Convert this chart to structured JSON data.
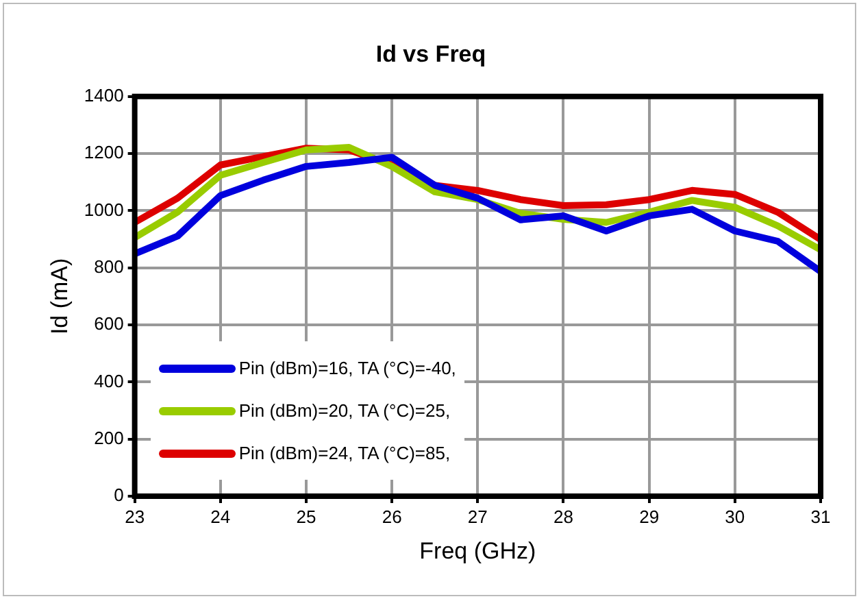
{
  "chart_data": {
    "type": "line",
    "title": "Id vs Freq",
    "xlabel": "Freq (GHz)",
    "ylabel": "Id (mA)",
    "x": [
      23,
      23.5,
      24,
      24.5,
      25,
      25.5,
      26,
      26.5,
      27,
      27.5,
      28,
      28.5,
      29,
      29.5,
      30,
      30.5,
      31
    ],
    "series": [
      {
        "name": "Pin (dBm)=16, TA (°C)=-40,",
        "color": "#0000dd",
        "values": [
          849,
          911,
          1053,
          1107,
          1155,
          1169,
          1187,
          1089,
          1044,
          968,
          982,
          929,
          982,
          1005,
          929,
          893,
          787
        ]
      },
      {
        "name": "Pin (dBm)=20, TA (°C)=25,",
        "color": "#99cc00",
        "values": [
          906,
          995,
          1124,
          1169,
          1213,
          1222,
          1155,
          1066,
          1039,
          991,
          970,
          959,
          995,
          1036,
          1012,
          947,
          863
        ]
      },
      {
        "name": "Pin (dBm)=24, TA (°C)=85,",
        "color": "#dd0000",
        "values": [
          959,
          1044,
          1160,
          1190,
          1219,
          1213,
          1160,
          1089,
          1071,
          1039,
          1018,
          1021,
          1039,
          1071,
          1057,
          995,
          899
        ]
      }
    ],
    "xlim": [
      23,
      31
    ],
    "xticks": [
      23,
      24,
      25,
      26,
      27,
      28,
      29,
      30,
      31
    ],
    "ylim": [
      0,
      1400
    ],
    "yticks": [
      0,
      200,
      400,
      600,
      800,
      1000,
      1200,
      1400
    ],
    "grid": true,
    "legend": "bottom left",
    "marker": "none",
    "line_style": "solid"
  }
}
